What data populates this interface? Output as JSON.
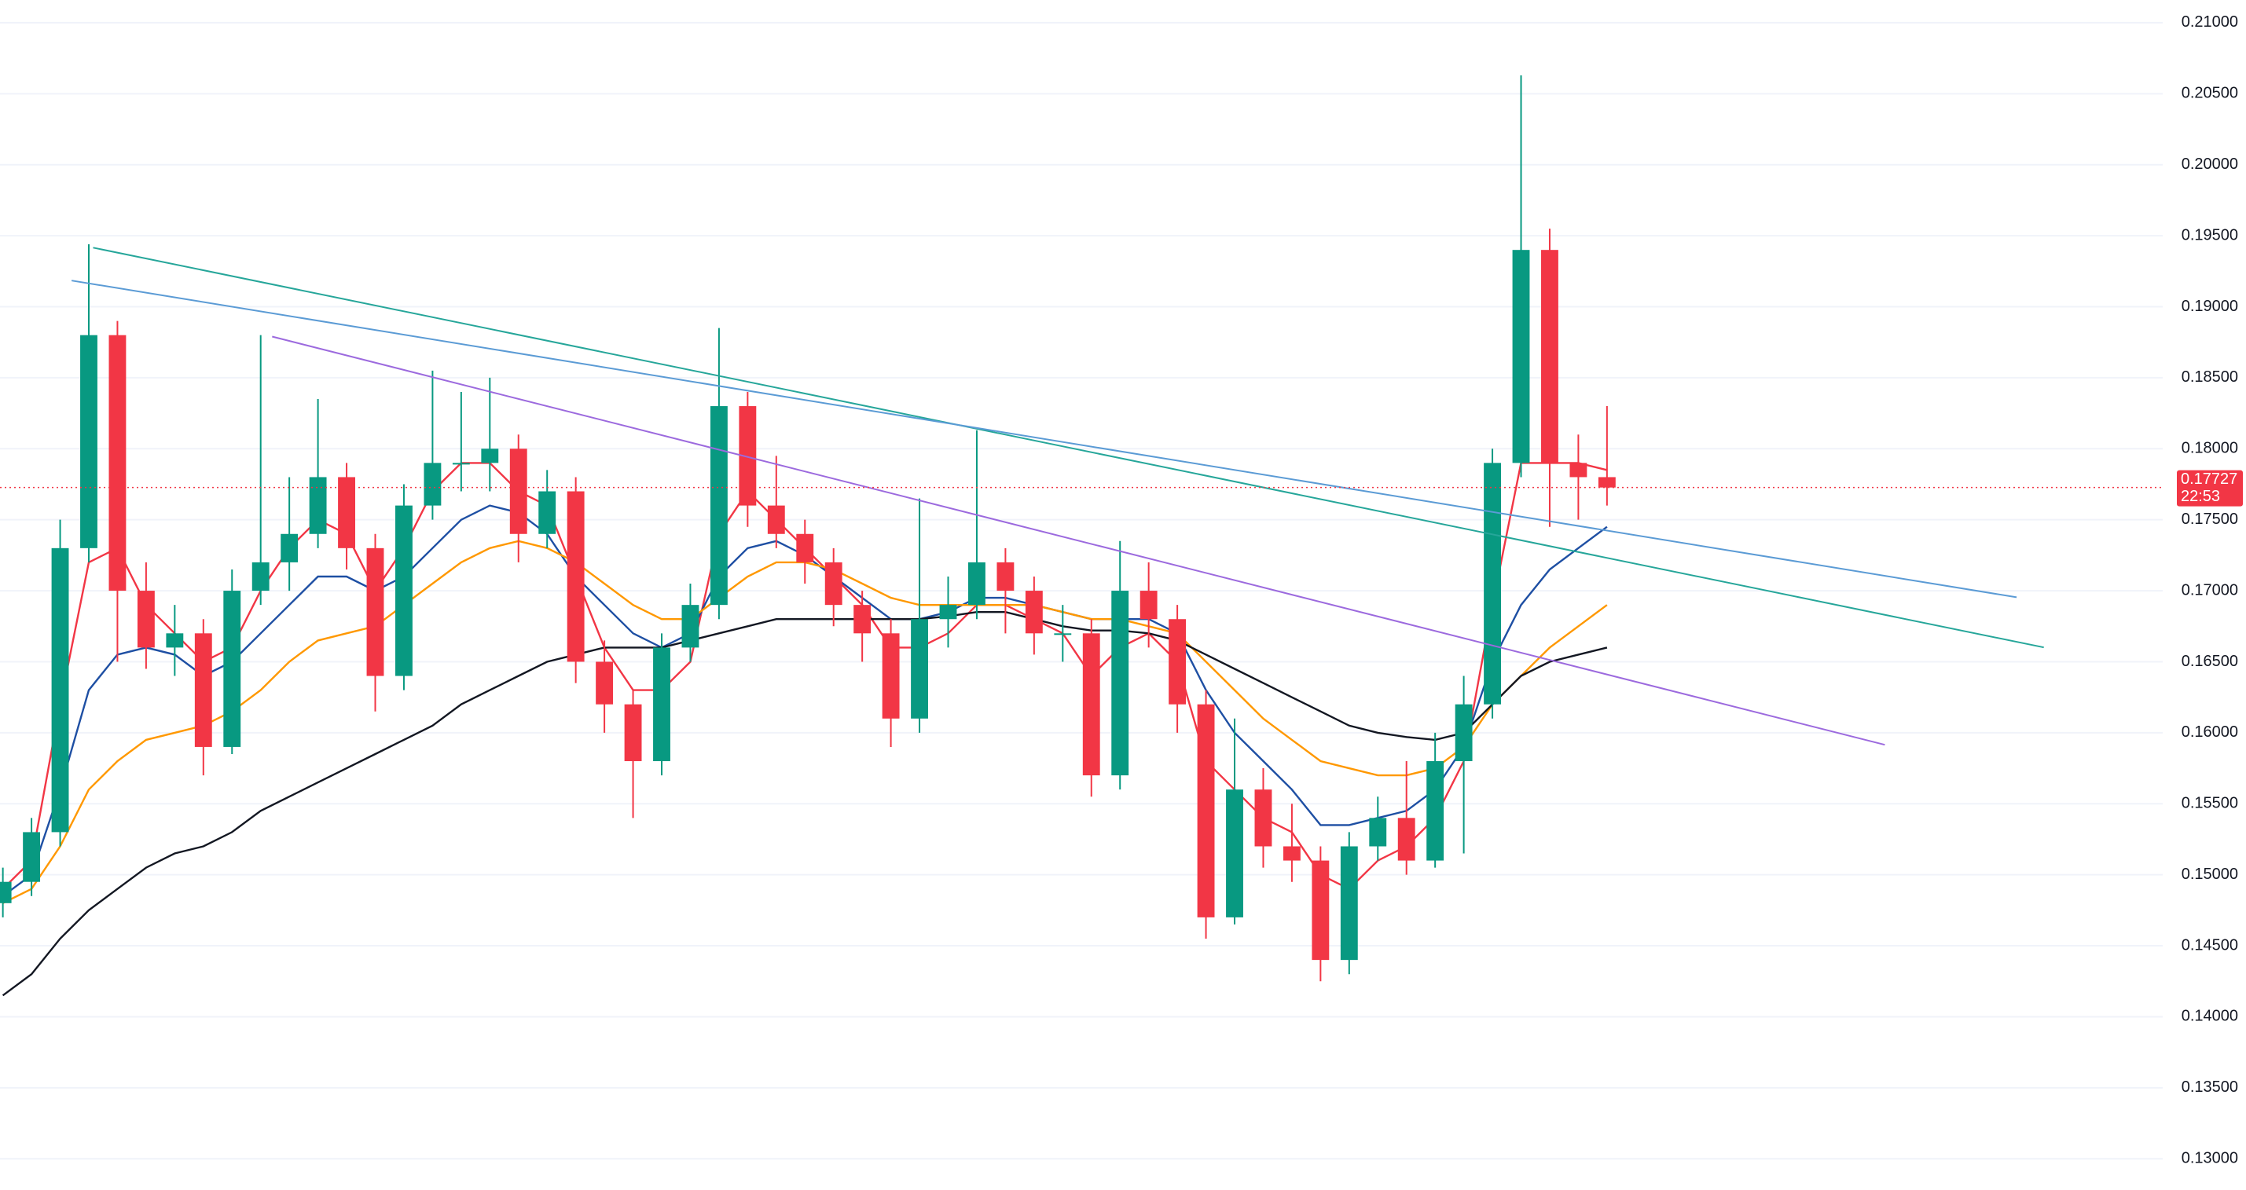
{
  "chart_data": {
    "type": "candlestick",
    "up_color": "#089981",
    "down_color": "#f23645",
    "grid": true,
    "xlim": [
      -0.1,
      75.4
    ],
    "ylim": [
      0.1278,
      0.2116
    ],
    "yticks": [
      {
        "value": 0.13,
        "label": "0.13000"
      },
      {
        "value": 0.135,
        "label": "0.13500"
      },
      {
        "value": 0.14,
        "label": "0.14000"
      },
      {
        "value": 0.145,
        "label": "0.14500"
      },
      {
        "value": 0.15,
        "label": "0.15000"
      },
      {
        "value": 0.155,
        "label": "0.15500"
      },
      {
        "value": 0.16,
        "label": "0.16000"
      },
      {
        "value": 0.165,
        "label": "0.16500"
      },
      {
        "value": 0.17,
        "label": "0.17000"
      },
      {
        "value": 0.175,
        "label": "0.17500"
      },
      {
        "value": 0.18,
        "label": "0.18000"
      },
      {
        "value": 0.185,
        "label": "0.18500"
      },
      {
        "value": 0.19,
        "label": "0.19000"
      },
      {
        "value": 0.195,
        "label": "0.19500"
      },
      {
        "value": 0.2,
        "label": "0.20000"
      },
      {
        "value": 0.205,
        "label": "0.20500"
      },
      {
        "value": 0.21,
        "label": "0.21000"
      }
    ],
    "open": [
      0.148,
      0.1495,
      0.153,
      0.173,
      0.188,
      0.17,
      0.166,
      0.167,
      0.159,
      0.17,
      0.172,
      0.174,
      0.178,
      0.173,
      0.164,
      0.176,
      0.179,
      0.179,
      0.18,
      0.174,
      0.177,
      0.165,
      0.162,
      0.158,
      0.166,
      0.169,
      0.183,
      0.176,
      0.174,
      0.172,
      0.169,
      0.167,
      0.161,
      0.168,
      0.169,
      0.172,
      0.17,
      0.167,
      0.167,
      0.157,
      0.17,
      0.168,
      0.162,
      0.147,
      0.156,
      0.152,
      0.151,
      0.144,
      0.152,
      0.154,
      0.151,
      0.158,
      0.162,
      0.179,
      0.194,
      0.179,
      0.178
    ],
    "high": [
      0.1505,
      0.154,
      0.175,
      0.1944,
      0.189,
      0.172,
      0.169,
      0.168,
      0.1715,
      0.188,
      0.178,
      0.1835,
      0.179,
      0.174,
      0.1775,
      0.1855,
      0.184,
      0.185,
      0.181,
      0.1785,
      0.178,
      0.1665,
      0.163,
      0.167,
      0.1705,
      0.1885,
      0.184,
      0.1795,
      0.175,
      0.173,
      0.17,
      0.168,
      0.1765,
      0.171,
      0.1813,
      0.173,
      0.171,
      0.169,
      0.168,
      0.1735,
      0.172,
      0.169,
      0.163,
      0.161,
      0.1575,
      0.155,
      0.152,
      0.153,
      0.1555,
      0.158,
      0.16,
      0.164,
      0.18,
      0.2063,
      0.1955,
      0.181,
      0.183
    ],
    "low": [
      0.147,
      0.1485,
      0.152,
      0.172,
      0.165,
      0.1645,
      0.164,
      0.157,
      0.1585,
      0.169,
      0.17,
      0.173,
      0.1715,
      0.1615,
      0.163,
      0.175,
      0.177,
      0.177,
      0.172,
      0.173,
      0.1635,
      0.16,
      0.154,
      0.157,
      0.165,
      0.168,
      0.1745,
      0.173,
      0.1705,
      0.1675,
      0.165,
      0.159,
      0.16,
      0.166,
      0.168,
      0.167,
      0.1655,
      0.165,
      0.1555,
      0.156,
      0.166,
      0.16,
      0.1455,
      0.1465,
      0.1505,
      0.1495,
      0.1425,
      0.143,
      0.151,
      0.15,
      0.1505,
      0.1515,
      0.161,
      0.178,
      0.1745,
      0.175,
      0.176
    ],
    "close": [
      0.1495,
      0.153,
      0.173,
      0.188,
      0.17,
      0.166,
      0.167,
      0.159,
      0.17,
      0.172,
      0.174,
      0.178,
      0.173,
      0.164,
      0.176,
      0.179,
      0.179,
      0.18,
      0.174,
      0.177,
      0.165,
      0.162,
      0.158,
      0.166,
      0.169,
      0.183,
      0.176,
      0.174,
      0.172,
      0.169,
      0.167,
      0.161,
      0.168,
      0.169,
      0.172,
      0.17,
      0.167,
      0.167,
      0.157,
      0.17,
      0.168,
      0.162,
      0.147,
      0.156,
      0.152,
      0.151,
      0.144,
      0.152,
      0.154,
      0.151,
      0.158,
      0.162,
      0.179,
      0.194,
      0.179,
      0.178,
      0.17727
    ],
    "lines": [
      {
        "color": "#f23645",
        "values": [
          0.149,
          0.151,
          0.162,
          0.172,
          0.173,
          0.169,
          0.167,
          0.165,
          0.166,
          0.17,
          0.173,
          0.175,
          0.174,
          0.17,
          0.173,
          0.177,
          0.179,
          0.179,
          0.177,
          0.176,
          0.171,
          0.166,
          0.163,
          0.163,
          0.165,
          0.174,
          0.177,
          0.175,
          0.173,
          0.171,
          0.169,
          0.166,
          0.166,
          0.167,
          0.169,
          0.169,
          0.168,
          0.167,
          0.164,
          0.166,
          0.167,
          0.165,
          0.158,
          0.156,
          0.154,
          0.153,
          0.15,
          0.149,
          0.151,
          0.152,
          0.154,
          0.158,
          0.169,
          0.179,
          0.179,
          0.179,
          0.1785
        ]
      },
      {
        "color": "#1e4fa3",
        "values": [
          0.1485,
          0.15,
          0.156,
          0.163,
          0.1655,
          0.166,
          0.1655,
          0.164,
          0.165,
          0.167,
          0.169,
          0.171,
          0.171,
          0.17,
          0.171,
          0.173,
          0.175,
          0.176,
          0.1755,
          0.174,
          0.171,
          0.169,
          0.167,
          0.166,
          0.167,
          0.171,
          0.173,
          0.1735,
          0.1725,
          0.171,
          0.1695,
          0.168,
          0.168,
          0.1685,
          0.1695,
          0.1695,
          0.169,
          0.1685,
          0.168,
          0.168,
          0.168,
          0.167,
          0.163,
          0.16,
          0.158,
          0.156,
          0.1535,
          0.1535,
          0.154,
          0.1545,
          0.156,
          0.159,
          0.165,
          0.169,
          0.1715,
          0.173,
          0.1745
        ]
      },
      {
        "color": "#ff9800",
        "values": [
          0.148,
          0.149,
          0.152,
          0.156,
          0.158,
          0.1595,
          0.16,
          0.1605,
          0.1615,
          0.163,
          0.165,
          0.1665,
          0.167,
          0.1675,
          0.169,
          0.1705,
          0.172,
          0.173,
          0.1735,
          0.173,
          0.172,
          0.1705,
          0.169,
          0.168,
          0.168,
          0.1695,
          0.171,
          0.172,
          0.172,
          0.1715,
          0.1705,
          0.1695,
          0.169,
          0.169,
          0.169,
          0.169,
          0.169,
          0.1685,
          0.168,
          0.168,
          0.1675,
          0.167,
          0.165,
          0.163,
          0.161,
          0.1595,
          0.158,
          0.1575,
          0.157,
          0.157,
          0.1575,
          0.159,
          0.162,
          0.164,
          0.166,
          0.1675,
          0.169
        ]
      },
      {
        "color": "#131722",
        "values": [
          0.1415,
          0.143,
          0.1455,
          0.1475,
          0.149,
          0.1505,
          0.1515,
          0.152,
          0.153,
          0.1545,
          0.1555,
          0.1565,
          0.1575,
          0.1585,
          0.1595,
          0.1605,
          0.162,
          0.163,
          0.164,
          0.165,
          0.1655,
          0.166,
          0.166,
          0.166,
          0.1665,
          0.167,
          0.1675,
          0.168,
          0.168,
          0.168,
          0.168,
          0.168,
          0.168,
          0.1682,
          0.1685,
          0.1685,
          0.168,
          0.1675,
          0.1672,
          0.1672,
          0.167,
          0.1665,
          0.1655,
          0.1645,
          0.1635,
          0.1625,
          0.1615,
          0.1605,
          0.16,
          0.1597,
          0.1595,
          0.16,
          0.162,
          0.164,
          0.165,
          0.1655,
          0.166
        ]
      }
    ],
    "trendlines": [
      {
        "color": "#26a69a",
        "x": [
          3.15,
          71.25
        ],
        "y": [
          0.19416,
          0.16601
        ]
      },
      {
        "color": "#5b9bd5",
        "x": [
          2.4,
          70.3
        ],
        "y": [
          0.19184,
          0.16954
        ]
      },
      {
        "color": "#9c6ade",
        "x": [
          9.4,
          65.7
        ],
        "y": [
          0.1879,
          0.15915
        ]
      }
    ],
    "last_price": {
      "value": 0.17727,
      "label": "0.17727"
    },
    "countdown": "22:53"
  }
}
